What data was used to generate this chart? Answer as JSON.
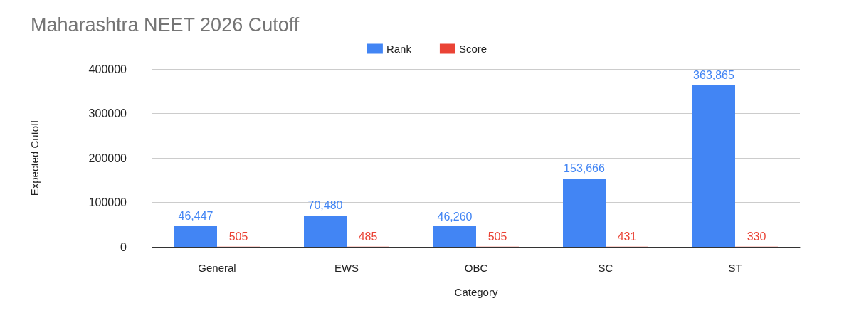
{
  "chart_data": {
    "type": "bar",
    "title": "Maharashtra NEET 2026 Cutoff",
    "xlabel": "Category",
    "ylabel": "Expected Cutoff",
    "categories": [
      "General",
      "EWS",
      "OBC",
      "SC",
      "ST"
    ],
    "series": [
      {
        "name": "Rank",
        "color": "#4285f4",
        "values": [
          46447,
          70480,
          46260,
          153666,
          363865
        ],
        "value_labels": [
          "46,447",
          "70,480",
          "46,260",
          "153,666",
          "363,865"
        ]
      },
      {
        "name": "Score",
        "color": "#ea4335",
        "values": [
          505,
          485,
          505,
          431,
          330
        ],
        "value_labels": [
          "505",
          "485",
          "505",
          "431",
          "330"
        ]
      }
    ],
    "ylim": [
      0,
      400000
    ],
    "yticks": [
      0,
      100000,
      200000,
      300000,
      400000
    ],
    "grid": "y",
    "legend": "top"
  }
}
